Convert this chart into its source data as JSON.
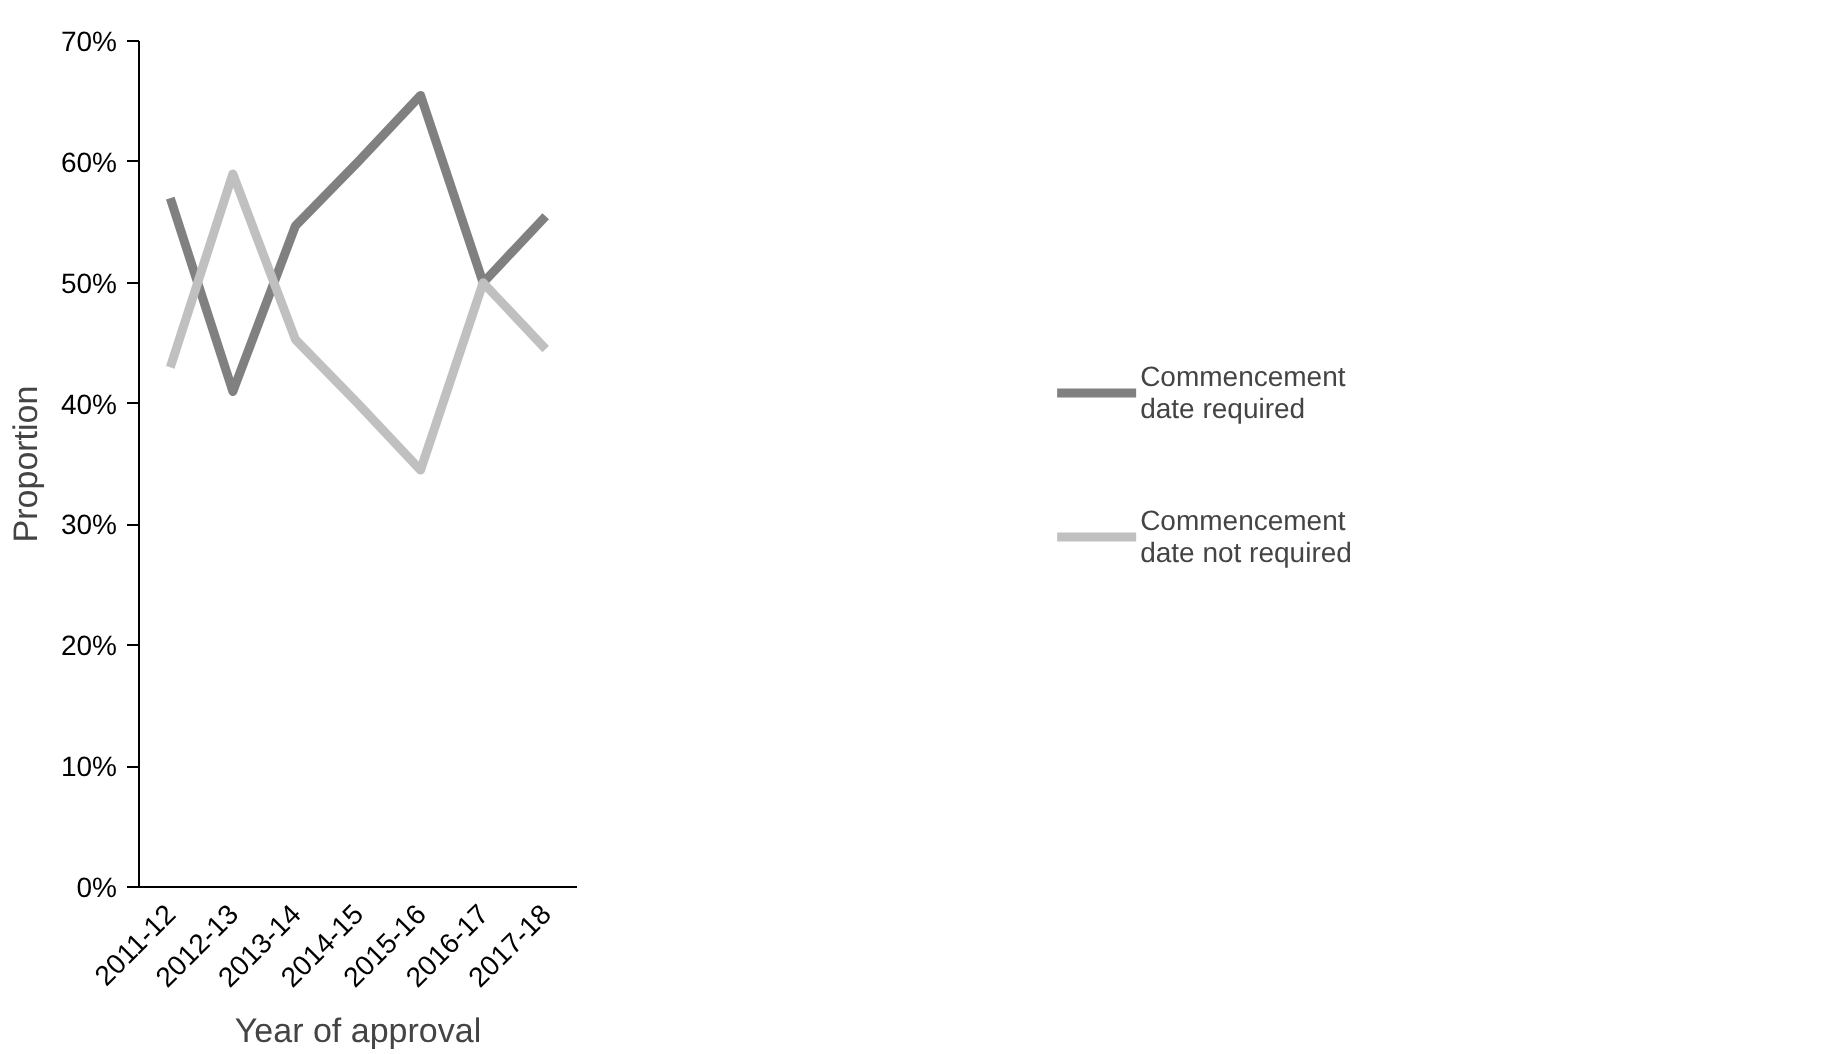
{
  "chart_data": {
    "type": "line",
    "xlabel": "Year of approval",
    "ylabel": "Proportion",
    "categories": [
      "2011-12",
      "2012-13",
      "2013-14",
      "2014-15",
      "2015-16",
      "2016-17",
      "2017-18"
    ],
    "series": [
      {
        "name": "Commencement date required",
        "color": "#808080",
        "values": [
          57,
          41,
          54.7,
          60,
          65.5,
          50,
          55.5
        ]
      },
      {
        "name": "Commencement date not required",
        "color": "#c0c0c0",
        "values": [
          43,
          59,
          45.3,
          40,
          34.5,
          50,
          44.5
        ]
      }
    ],
    "ylim": [
      0,
      70
    ],
    "yticks": [
      {
        "value": 0,
        "label": "0%"
      },
      {
        "value": 10,
        "label": "10%"
      },
      {
        "value": 20,
        "label": "20%"
      },
      {
        "value": 30,
        "label": "30%"
      },
      {
        "value": 40,
        "label": "40%"
      },
      {
        "value": 50,
        "label": "50%"
      },
      {
        "value": 60,
        "label": "60%"
      },
      {
        "value": 70,
        "label": "70%"
      }
    ],
    "grid": false,
    "legend": "right",
    "marker": "none",
    "line_style": "solid"
  }
}
